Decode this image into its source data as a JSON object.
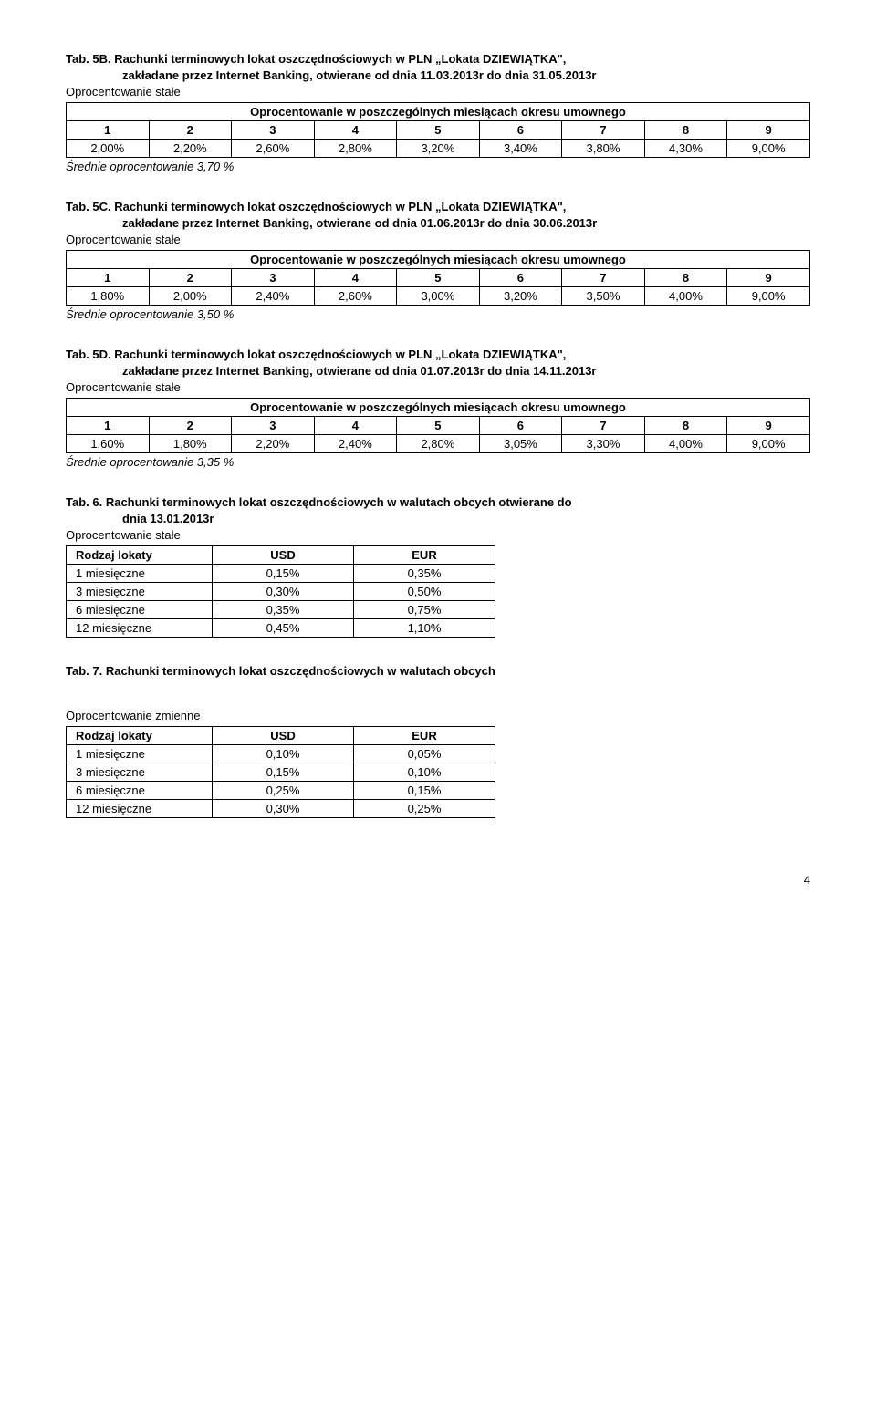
{
  "tab5B": {
    "title_a": "Tab. 5B. Rachunki terminowych lokat oszczędnościowych w PLN „Lokata DZIEWIĄTKA\",",
    "title_b": "zakładane przez Internet Banking, otwierane od dnia 11.03.2013r do dnia 31.05.2013r",
    "op": "Oprocentowanie stałe",
    "caption": "Oprocentowanie w poszczególnych miesiącach okresu umownego",
    "h": [
      "1",
      "2",
      "3",
      "4",
      "5",
      "6",
      "7",
      "8",
      "9"
    ],
    "v": [
      "2,00%",
      "2,20%",
      "2,60%",
      "2,80%",
      "3,20%",
      "3,40%",
      "3,80%",
      "4,30%",
      "9,00%"
    ],
    "srednie": "Średnie oprocentowanie 3,70 %"
  },
  "tab5C": {
    "title_a": "Tab. 5C. Rachunki terminowych lokat oszczędnościowych w PLN „Lokata DZIEWIĄTKA\",",
    "title_b": "zakładane przez Internet Banking, otwierane od dnia 01.06.2013r do dnia 30.06.2013r",
    "op": "Oprocentowanie stałe",
    "caption": "Oprocentowanie w poszczególnych miesiącach okresu umownego",
    "h": [
      "1",
      "2",
      "3",
      "4",
      "5",
      "6",
      "7",
      "8",
      "9"
    ],
    "v": [
      "1,80%",
      "2,00%",
      "2,40%",
      "2,60%",
      "3,00%",
      "3,20%",
      "3,50%",
      "4,00%",
      "9,00%"
    ],
    "srednie": "Średnie oprocentowanie 3,50 %"
  },
  "tab5D": {
    "title_a": "Tab. 5D. Rachunki terminowych lokat oszczędnościowych w PLN „Lokata DZIEWIĄTKA\",",
    "title_b": "zakładane przez Internet Banking, otwierane od dnia 01.07.2013r do dnia 14.11.2013r",
    "op": "Oprocentowanie stałe",
    "caption": "Oprocentowanie w poszczególnych miesiącach okresu umownego",
    "h": [
      "1",
      "2",
      "3",
      "4",
      "5",
      "6",
      "7",
      "8",
      "9"
    ],
    "v": [
      "1,60%",
      "1,80%",
      "2,20%",
      "2,40%",
      "2,80%",
      "3,05%",
      "3,30%",
      "4,00%",
      "9,00%"
    ],
    "srednie": "Średnie oprocentowanie 3,35 %"
  },
  "tab6": {
    "title_a": "Tab. 6.  Rachunki terminowych lokat oszczędnościowych w walutach obcych otwierane do",
    "title_b": "dnia 13.01.2013r",
    "op": "Oprocentowanie stałe",
    "cols": [
      "Rodzaj lokaty",
      "USD",
      "EUR"
    ],
    "rows": [
      [
        "1 miesięczne",
        "0,15%",
        "0,35%"
      ],
      [
        "3 miesięczne",
        "0,30%",
        "0,50%"
      ],
      [
        "6 miesięczne",
        "0,35%",
        "0,75%"
      ],
      [
        "12 miesięczne",
        "0,45%",
        "1,10%"
      ]
    ]
  },
  "tab7": {
    "title_a": "Tab. 7. Rachunki terminowych lokat oszczędnościowych w walutach obcych",
    "op": "Oprocentowanie zmienne",
    "cols": [
      "Rodzaj lokaty",
      "USD",
      "EUR"
    ],
    "rows": [
      [
        "1 miesięczne",
        "0,10%",
        "0,05%"
      ],
      [
        "3 miesięczne",
        "0,15%",
        "0,10%"
      ],
      [
        "6 miesięczne",
        "0,25%",
        "0,15%"
      ],
      [
        "12 miesięczne",
        "0,30%",
        "0,25%"
      ]
    ]
  },
  "page": "4"
}
